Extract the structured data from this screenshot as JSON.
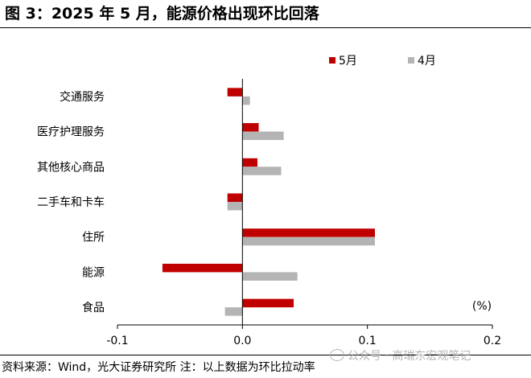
{
  "title": "图 3：2025 年 5 月，能源价格出现环比回落",
  "source": "资料来源：Wind，光大证券研究所    注：以上数据为环比拉动率",
  "watermark": "公众号 · 高瑞东宏观笔记",
  "chart_data": {
    "type": "bar",
    "orientation": "horizontal",
    "categories": [
      "交通服务",
      "医疗护理服务",
      "其他核心商品",
      "二手车和卡车",
      "住所",
      "能源",
      "食品"
    ],
    "series": [
      {
        "name": "5月",
        "color": "#c00000",
        "values": [
          -0.012,
          0.013,
          0.012,
          -0.012,
          0.106,
          -0.064,
          0.041
        ]
      },
      {
        "name": "4月",
        "color": "#b4b4b4",
        "values": [
          0.006,
          0.033,
          0.031,
          -0.012,
          0.106,
          0.044,
          -0.014
        ]
      }
    ],
    "xlim": [
      -0.1,
      0.2
    ],
    "xticks": [
      "-0.1",
      "0.0",
      "0.1",
      "0.2"
    ],
    "unit_label": "(%)",
    "legend_position": "top-right",
    "grid": false
  }
}
